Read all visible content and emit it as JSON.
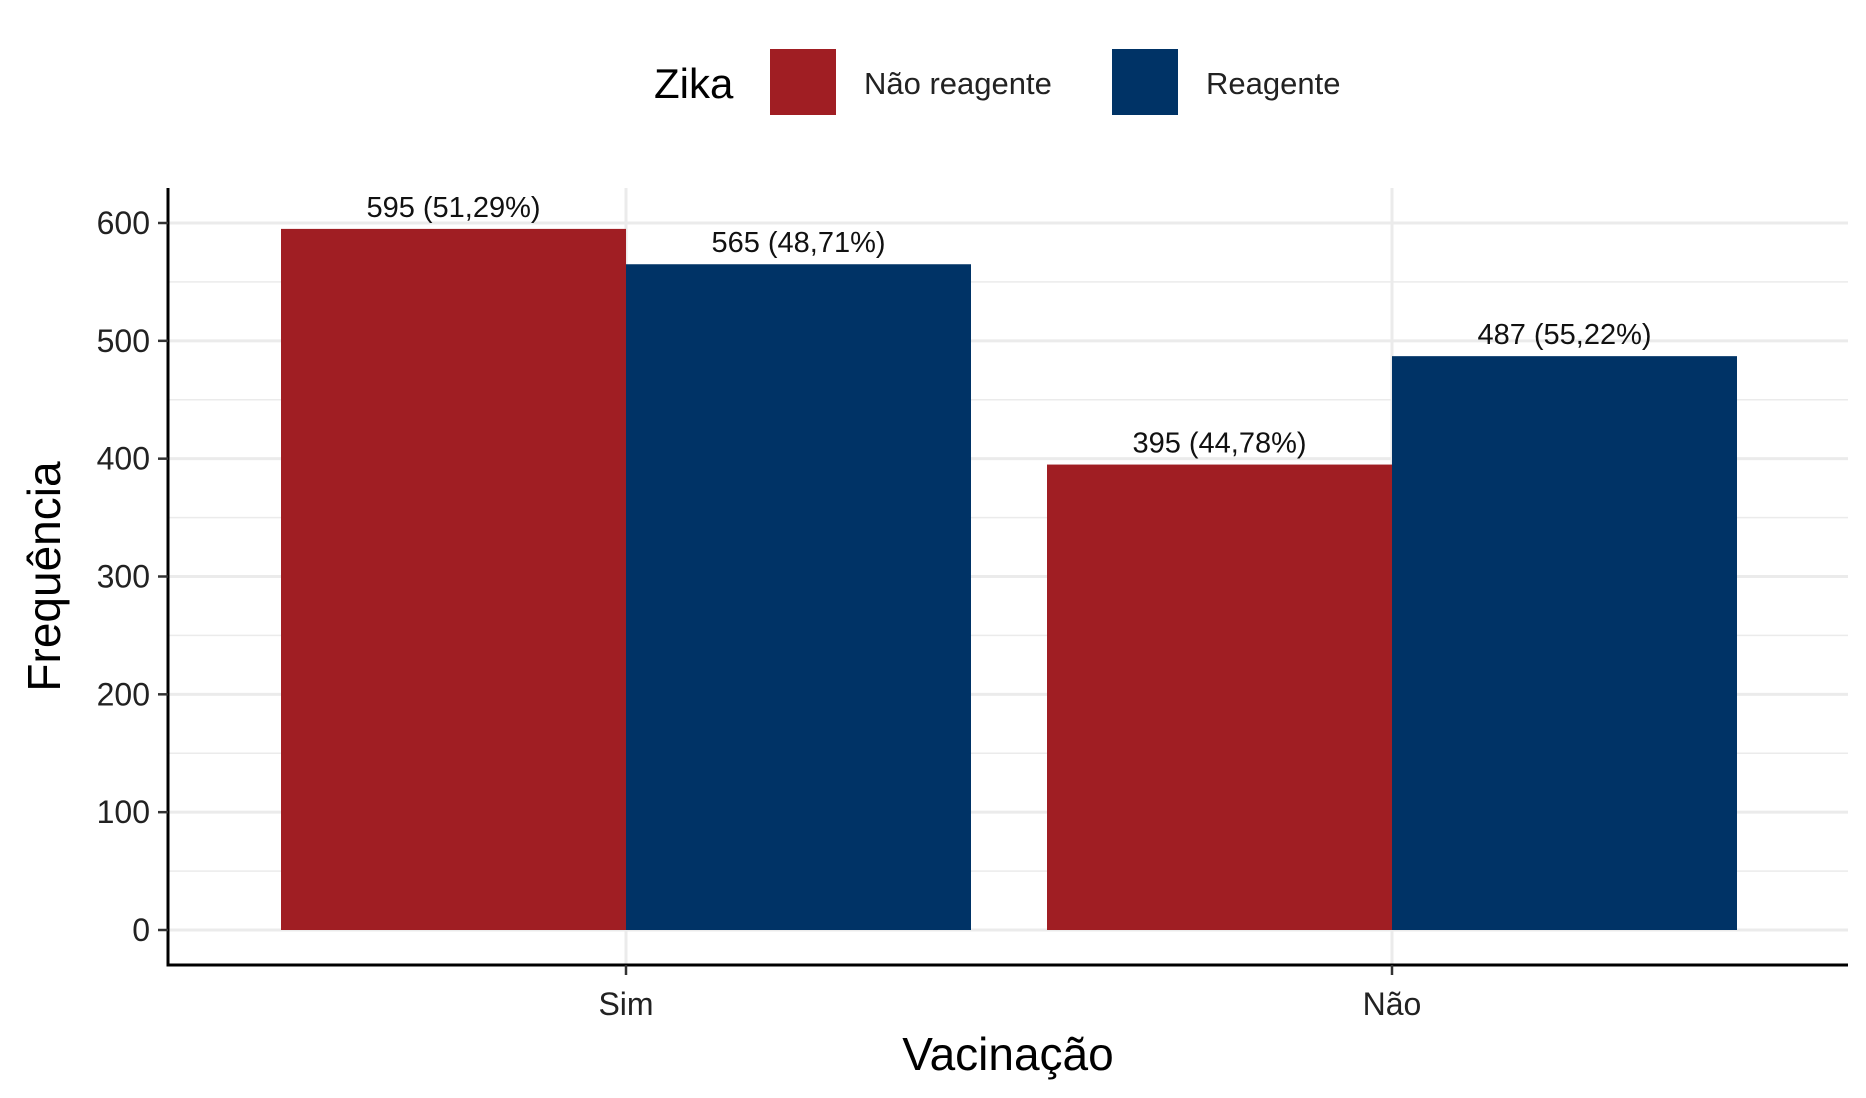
{
  "chart_data": {
    "type": "bar",
    "categories": [
      "Sim",
      "Não"
    ],
    "series": [
      {
        "name": "Não reagente",
        "color": "#A01E23",
        "values": [
          595,
          395
        ],
        "labels": [
          "595 (51,29%)",
          "395 (44,78%)"
        ]
      },
      {
        "name": "Reagente",
        "color": "#003366",
        "values": [
          565,
          487
        ],
        "labels": [
          "565 (48,71%)",
          "487 (55,22%)"
        ]
      }
    ],
    "xlabel": "Vacinação",
    "ylabel": "Frequência",
    "ylim": [
      0,
      600
    ],
    "yticks": [
      0,
      100,
      200,
      300,
      400,
      500,
      600
    ],
    "legend": {
      "title": "Zika",
      "position": "top"
    },
    "grid": true
  }
}
